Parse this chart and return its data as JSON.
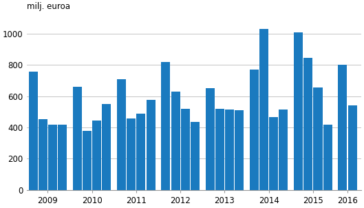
{
  "values": [
    760,
    455,
    420,
    420,
    660,
    380,
    445,
    550,
    710,
    460,
    490,
    575,
    820,
    630,
    520,
    435,
    650,
    520,
    515,
    510,
    770,
    1030,
    465,
    515,
    1010,
    845,
    655,
    420,
    800,
    540
  ],
  "bars_per_year": [
    4,
    4,
    4,
    4,
    4,
    4,
    4,
    2
  ],
  "x_labels": [
    "2009",
    "2010",
    "2011",
    "2012",
    "2013",
    "2014",
    "2015",
    "2016"
  ],
  "bar_color": "#1a7abf",
  "ylabel": "milj. euroa",
  "ylim": [
    0,
    1100
  ],
  "yticks": [
    0,
    200,
    400,
    600,
    800,
    1000
  ],
  "background_color": "#ffffff",
  "grid_color": "#bbbbbb",
  "ylabel_fontsize": 8.5,
  "tick_fontsize": 8.5
}
